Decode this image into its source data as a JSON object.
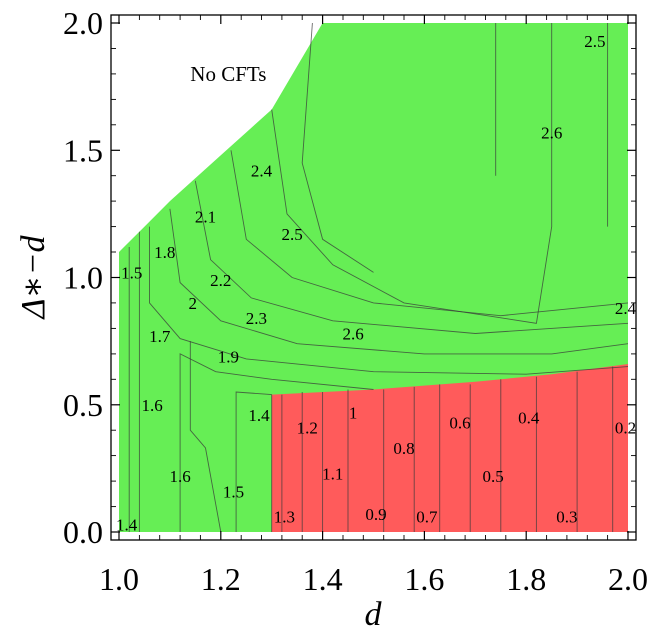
{
  "chart_data": {
    "type": "contour",
    "title": "",
    "xlabel": "d",
    "ylabel": "Δ∗−d",
    "xlim": [
      1.0,
      2.0
    ],
    "ylim": [
      0.0,
      2.0
    ],
    "x_ticks": [
      "1.0",
      "1.2",
      "1.4",
      "1.6",
      "1.8",
      "2.0"
    ],
    "y_ticks": [
      "0.0",
      "0.5",
      "1.0",
      "1.5",
      "2.0"
    ],
    "x_tick_values": [
      1.0,
      1.2,
      1.4,
      1.6,
      1.8,
      2.0
    ],
    "y_tick_values": [
      0.0,
      0.5,
      1.0,
      1.5,
      2.0
    ],
    "regions": [
      {
        "name": "green",
        "color": "#66ee55",
        "boundary": [
          [
            1.0,
            0.0
          ],
          [
            1.0,
            1.1
          ],
          [
            1.05,
            1.2
          ],
          [
            1.1,
            1.3
          ],
          [
            1.2,
            1.48
          ],
          [
            1.3,
            1.66
          ],
          [
            1.4,
            2.0
          ],
          [
            2.0,
            2.0
          ],
          [
            2.0,
            0.0
          ]
        ]
      },
      {
        "name": "red",
        "color": "#ff5b5b",
        "boundary": [
          [
            1.3,
            0.0
          ],
          [
            1.3,
            0.54
          ],
          [
            1.5,
            0.56
          ],
          [
            1.7,
            0.59
          ],
          [
            1.85,
            0.62
          ],
          [
            2.0,
            0.66
          ],
          [
            2.0,
            0.0
          ]
        ]
      }
    ],
    "annotations": [
      {
        "text": "No CFTs",
        "x": 1.14,
        "y": 1.8
      }
    ],
    "contour_labels": [
      {
        "text": "2.5",
        "x": 1.935,
        "y": 1.93
      },
      {
        "text": "2.4",
        "x": 1.28,
        "y": 1.42
      },
      {
        "text": "2.6",
        "x": 1.85,
        "y": 1.57
      },
      {
        "text": "2.1",
        "x": 1.17,
        "y": 1.24
      },
      {
        "text": "2.5",
        "x": 1.34,
        "y": 1.17
      },
      {
        "text": "1.8",
        "x": 1.09,
        "y": 1.1
      },
      {
        "text": "1.5",
        "x": 1.025,
        "y": 1.02
      },
      {
        "text": "2.2",
        "x": 1.2,
        "y": 0.99
      },
      {
        "text": "2",
        "x": 1.145,
        "y": 0.9
      },
      {
        "text": "2.3",
        "x": 1.27,
        "y": 0.84
      },
      {
        "text": "2.6",
        "x": 1.46,
        "y": 0.78
      },
      {
        "text": "2.4",
        "x": 1.995,
        "y": 0.88
      },
      {
        "text": "1.7",
        "x": 1.08,
        "y": 0.77
      },
      {
        "text": "1.9",
        "x": 1.215,
        "y": 0.69
      },
      {
        "text": "1.6",
        "x": 1.065,
        "y": 0.5
      },
      {
        "text": "1.4",
        "x": 1.275,
        "y": 0.46
      },
      {
        "text": "1",
        "x": 1.46,
        "y": 0.47
      },
      {
        "text": "0.6",
        "x": 1.67,
        "y": 0.43
      },
      {
        "text": "0.4",
        "x": 1.805,
        "y": 0.45
      },
      {
        "text": "1.2",
        "x": 1.37,
        "y": 0.41
      },
      {
        "text": "0.2",
        "x": 1.995,
        "y": 0.41
      },
      {
        "text": "0.8",
        "x": 1.56,
        "y": 0.33
      },
      {
        "text": "1.1",
        "x": 1.42,
        "y": 0.23
      },
      {
        "text": "1.6",
        "x": 1.12,
        "y": 0.22
      },
      {
        "text": "0.5",
        "x": 1.735,
        "y": 0.22
      },
      {
        "text": "1.5",
        "x": 1.225,
        "y": 0.16
      },
      {
        "text": "0.9",
        "x": 1.505,
        "y": 0.07
      },
      {
        "text": "0.7",
        "x": 1.605,
        "y": 0.06
      },
      {
        "text": "0.3",
        "x": 1.88,
        "y": 0.06
      },
      {
        "text": "1.3",
        "x": 1.325,
        "y": 0.06
      },
      {
        "text": "1.4",
        "x": 1.015,
        "y": 0.03
      }
    ],
    "contour_lines": [
      [
        [
          1.02,
          0.0
        ],
        [
          1.02,
          1.12
        ]
      ],
      [
        [
          1.04,
          0.0
        ],
        [
          1.04,
          1.18
        ]
      ],
      [
        [
          1.12,
          0.0
        ],
        [
          1.12,
          0.7
        ],
        [
          1.19,
          0.63
        ],
        [
          1.3,
          0.6
        ],
        [
          1.5,
          0.56
        ]
      ],
      [
        [
          1.23,
          0.0
        ],
        [
          1.23,
          0.55
        ],
        [
          1.3,
          0.54
        ]
      ],
      [
        [
          1.3,
          0.0
        ],
        [
          1.3,
          0.54
        ]
      ],
      [
        [
          1.32,
          0.0
        ],
        [
          1.32,
          0.54
        ]
      ],
      [
        [
          1.36,
          0.0
        ],
        [
          1.36,
          0.55
        ]
      ],
      [
        [
          1.4,
          0.0
        ],
        [
          1.4,
          0.55
        ]
      ],
      [
        [
          1.45,
          0.0
        ],
        [
          1.45,
          0.56
        ]
      ],
      [
        [
          1.52,
          0.0
        ],
        [
          1.52,
          0.56
        ]
      ],
      [
        [
          1.58,
          0.0
        ],
        [
          1.58,
          0.57
        ]
      ],
      [
        [
          1.63,
          0.0
        ],
        [
          1.63,
          0.58
        ]
      ],
      [
        [
          1.69,
          0.0
        ],
        [
          1.69,
          0.58
        ]
      ],
      [
        [
          1.75,
          0.0
        ],
        [
          1.75,
          0.6
        ]
      ],
      [
        [
          1.82,
          0.0
        ],
        [
          1.82,
          0.61
        ]
      ],
      [
        [
          1.9,
          0.0
        ],
        [
          1.9,
          0.63
        ]
      ],
      [
        [
          1.97,
          0.0
        ],
        [
          1.97,
          0.65
        ]
      ],
      [
        [
          1.06,
          1.2
        ],
        [
          1.06,
          0.9
        ],
        [
          1.12,
          0.76
        ],
        [
          1.25,
          0.68
        ],
        [
          1.5,
          0.63
        ],
        [
          1.8,
          0.62
        ],
        [
          2.0,
          0.65
        ]
      ],
      [
        [
          1.1,
          1.27
        ],
        [
          1.12,
          0.98
        ],
        [
          1.2,
          0.83
        ],
        [
          1.35,
          0.74
        ],
        [
          1.6,
          0.7
        ],
        [
          1.85,
          0.7
        ],
        [
          2.0,
          0.74
        ]
      ],
      [
        [
          1.15,
          1.38
        ],
        [
          1.18,
          1.07
        ],
        [
          1.26,
          0.92
        ],
        [
          1.42,
          0.83
        ],
        [
          1.7,
          0.78
        ],
        [
          2.0,
          0.82
        ]
      ],
      [
        [
          1.22,
          1.5
        ],
        [
          1.25,
          1.15
        ],
        [
          1.34,
          1.0
        ],
        [
          1.5,
          0.9
        ],
        [
          1.75,
          0.85
        ],
        [
          2.0,
          0.9
        ]
      ],
      [
        [
          1.3,
          1.66
        ],
        [
          1.33,
          1.25
        ],
        [
          1.42,
          1.05
        ],
        [
          1.56,
          0.9
        ],
        [
          1.82,
          0.82
        ],
        [
          1.85,
          1.2
        ],
        [
          1.85,
          2.0
        ]
      ],
      [
        [
          1.14,
          0.75
        ],
        [
          1.14,
          0.4
        ],
        [
          1.17,
          0.33
        ],
        [
          1.2,
          0.0
        ]
      ],
      [
        [
          1.38,
          2.0
        ],
        [
          1.36,
          1.45
        ],
        [
          1.4,
          1.15
        ],
        [
          1.5,
          1.02
        ]
      ],
      [
        [
          1.74,
          2.0
        ],
        [
          1.74,
          1.4
        ]
      ],
      [
        [
          1.96,
          2.0
        ],
        [
          1.96,
          1.2
        ]
      ]
    ]
  }
}
